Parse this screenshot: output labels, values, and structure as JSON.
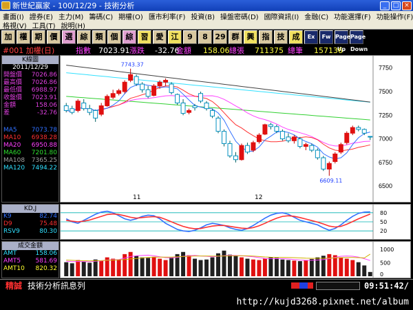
{
  "window": {
    "title": "新世紀贏家 - 100/12/29 - 技術分析"
  },
  "menu": {
    "row1": [
      "畫面(I)",
      "證券(E)",
      "主力(M)",
      "籌碼(C)",
      "期權(O)",
      "匯市利率(F)",
      "投資(B)",
      "操盤密碼(D)",
      "國際資訊(I)",
      "金融(C)",
      "功能選擇(F)",
      "功能操作(F)"
    ],
    "row2": [
      "格視(V)",
      "工具(T)",
      "說明(H)"
    ]
  },
  "toolbar": {
    "buttons": [
      "加",
      "權",
      "期",
      "價",
      "選",
      "綜",
      "類",
      "個",
      "綜",
      "習",
      "愛",
      "江",
      "9",
      "8",
      "29",
      "群",
      "興",
      "指",
      "技",
      "成"
    ],
    "extra": [
      "Ex",
      "Fw",
      "Page Up",
      "Page Down"
    ]
  },
  "info": {
    "symbol": "#001 加權(日)",
    "index_label": "指數",
    "index_value": "7023.91",
    "change_label": "漲跌",
    "change_value": "-32.76",
    "amount_label": "金額",
    "amount_value": "158.06",
    "vol_label": "總張",
    "vol_value": "711375",
    "count_label": "總筆",
    "count_value": "157136"
  },
  "kpanel": {
    "title": "K線圖",
    "date": "2011/12/29",
    "rows": [
      {
        "label": "開盤價",
        "value": "7026.86",
        "color": "#e040e0"
      },
      {
        "label": "最高價",
        "value": "7026.86",
        "color": "#e040e0"
      },
      {
        "label": "最低價",
        "value": "6988.97",
        "color": "#e040e0"
      },
      {
        "label": "收盤價",
        "value": "7023.91",
        "color": "#e040e0"
      },
      {
        "label": "金額",
        "value": "158.06",
        "color": "#e040e0"
      },
      {
        "label": "差",
        "value": "-32.76",
        "color": "#e040e0"
      }
    ],
    "ma": [
      {
        "label": "MA5",
        "value": "7073.78",
        "color": "#3070ff"
      },
      {
        "label": "MA10",
        "value": "6938.28",
        "color": "#ff3030"
      },
      {
        "label": "MA20",
        "value": "6950.88",
        "color": "#ff40ff"
      },
      {
        "label": "MA60",
        "value": "7201.80",
        "color": "#30e030"
      },
      {
        "label": "MA108",
        "value": "7365.25",
        "color": "#a0a0a0"
      },
      {
        "label": "MA120",
        "value": "7494.22",
        "color": "#30e0ff"
      }
    ]
  },
  "kdpanel": {
    "title": "KD,J",
    "rows": [
      {
        "label": "K9",
        "value": "82.74",
        "color": "#3070ff"
      },
      {
        "label": "D9",
        "value": "75.48",
        "color": "#ff3030"
      },
      {
        "label": "RSV9",
        "value": "80.30",
        "color": "#30e0ff"
      }
    ]
  },
  "volpanel": {
    "title": "成交金額",
    "rows": [
      {
        "label": "AMT",
        "value": "158.06",
        "color": "#30e0ff"
      },
      {
        "label": "AMT5",
        "value": "581.69",
        "color": "#ff40ff"
      },
      {
        "label": "AMT10",
        "value": "820.32",
        "color": "#ffff30"
      }
    ]
  },
  "chart_data": {
    "type": "candlestick",
    "price_axis": {
      "ticks": [
        7750,
        7500,
        7250,
        7000,
        6750,
        6500
      ],
      "ylim": [
        6450,
        7850
      ]
    },
    "x_labels": [
      "11",
      "12"
    ],
    "annotations": {
      "high": "7743.37",
      "low": "6609.11"
    },
    "candles": [
      {
        "o": 7350,
        "h": 7380,
        "l": 7280,
        "c": 7300
      },
      {
        "o": 7320,
        "h": 7350,
        "l": 7260,
        "c": 7280
      },
      {
        "o": 7300,
        "h": 7420,
        "l": 7280,
        "c": 7400
      },
      {
        "o": 7380,
        "h": 7420,
        "l": 7300,
        "c": 7320
      },
      {
        "o": 7320,
        "h": 7360,
        "l": 7250,
        "c": 7280
      },
      {
        "o": 7300,
        "h": 7310,
        "l": 7180,
        "c": 7220
      },
      {
        "o": 7260,
        "h": 7380,
        "l": 7240,
        "c": 7350
      },
      {
        "o": 7350,
        "h": 7470,
        "l": 7340,
        "c": 7450
      },
      {
        "o": 7440,
        "h": 7520,
        "l": 7420,
        "c": 7480
      },
      {
        "o": 7480,
        "h": 7530,
        "l": 7460,
        "c": 7510
      },
      {
        "o": 7500,
        "h": 7620,
        "l": 7480,
        "c": 7600
      },
      {
        "o": 7620,
        "h": 7743,
        "l": 7600,
        "c": 7680
      },
      {
        "o": 7660,
        "h": 7680,
        "l": 7560,
        "c": 7580
      },
      {
        "o": 7580,
        "h": 7600,
        "l": 7490,
        "c": 7520
      },
      {
        "o": 7520,
        "h": 7560,
        "l": 7430,
        "c": 7450
      },
      {
        "o": 7460,
        "h": 7580,
        "l": 7450,
        "c": 7560
      },
      {
        "o": 7560,
        "h": 7620,
        "l": 7530,
        "c": 7600
      },
      {
        "o": 7600,
        "h": 7640,
        "l": 7560,
        "c": 7620
      },
      {
        "o": 7580,
        "h": 7600,
        "l": 7470,
        "c": 7490
      },
      {
        "o": 7470,
        "h": 7480,
        "l": 7360,
        "c": 7380
      },
      {
        "o": 7380,
        "h": 7420,
        "l": 7250,
        "c": 7270
      },
      {
        "o": 7280,
        "h": 7320,
        "l": 7260,
        "c": 7300
      },
      {
        "o": 7350,
        "h": 7370,
        "l": 7300,
        "c": 7330
      },
      {
        "o": 7480,
        "h": 7500,
        "l": 7380,
        "c": 7400
      },
      {
        "o": 7380,
        "h": 7400,
        "l": 7300,
        "c": 7320
      },
      {
        "o": 7300,
        "h": 7320,
        "l": 7220,
        "c": 7240
      },
      {
        "o": 7220,
        "h": 7240,
        "l": 7060,
        "c": 7080
      },
      {
        "o": 7080,
        "h": 7100,
        "l": 6920,
        "c": 6950
      },
      {
        "o": 6950,
        "h": 6980,
        "l": 6800,
        "c": 6820
      },
      {
        "o": 6820,
        "h": 6860,
        "l": 6750,
        "c": 6780
      },
      {
        "o": 6780,
        "h": 6950,
        "l": 6770,
        "c": 6930
      },
      {
        "o": 6930,
        "h": 6960,
        "l": 6840,
        "c": 6860
      },
      {
        "o": 6880,
        "h": 6980,
        "l": 6860,
        "c": 6960
      },
      {
        "o": 6970,
        "h": 7060,
        "l": 6950,
        "c": 7040
      },
      {
        "o": 7050,
        "h": 7160,
        "l": 7040,
        "c": 7150
      },
      {
        "o": 7150,
        "h": 7170,
        "l": 7100,
        "c": 7130
      },
      {
        "o": 7130,
        "h": 7150,
        "l": 7060,
        "c": 7080
      },
      {
        "o": 7080,
        "h": 7100,
        "l": 6980,
        "c": 7000
      },
      {
        "o": 7020,
        "h": 7060,
        "l": 6960,
        "c": 6980
      },
      {
        "o": 6980,
        "h": 7040,
        "l": 6950,
        "c": 7020
      },
      {
        "o": 7000,
        "h": 7020,
        "l": 6900,
        "c": 6920
      },
      {
        "o": 6920,
        "h": 6960,
        "l": 6880,
        "c": 6940
      },
      {
        "o": 6930,
        "h": 6950,
        "l": 6860,
        "c": 6880
      },
      {
        "o": 6880,
        "h": 6900,
        "l": 6780,
        "c": 6800
      },
      {
        "o": 6800,
        "h": 6820,
        "l": 6660,
        "c": 6680
      },
      {
        "o": 6680,
        "h": 6760,
        "l": 6609,
        "c": 6740
      },
      {
        "o": 6760,
        "h": 6860,
        "l": 6740,
        "c": 6840
      },
      {
        "o": 6860,
        "h": 6960,
        "l": 6840,
        "c": 6940
      },
      {
        "o": 6960,
        "h": 7080,
        "l": 6940,
        "c": 7060
      },
      {
        "o": 7060,
        "h": 7140,
        "l": 7040,
        "c": 7120
      },
      {
        "o": 7120,
        "h": 7140,
        "l": 7080,
        "c": 7100
      },
      {
        "o": 7100,
        "h": 7110,
        "l": 7040,
        "c": 7060
      },
      {
        "o": 7026,
        "h": 7026,
        "l": 6988,
        "c": 7023
      }
    ],
    "kd_axis": {
      "ticks": [
        80,
        50,
        20
      ],
      "ylim": [
        0,
        100
      ]
    },
    "kd_series": [
      {
        "name": "K9",
        "color": "#3070ff",
        "values": [
          60,
          50,
          45,
          55,
          65,
          75,
          82,
          85,
          80,
          70,
          60,
          55,
          60,
          68,
          72,
          70,
          60,
          45,
          35,
          25,
          20,
          18,
          22,
          30,
          40,
          45,
          42,
          38,
          30,
          25,
          22,
          28,
          38,
          50,
          62,
          72,
          78,
          80,
          75,
          65,
          55,
          50,
          45,
          40,
          30,
          22,
          28,
          40,
          55,
          68,
          78,
          82,
          82.74
        ]
      },
      {
        "name": "D9",
        "color": "#ff3030",
        "values": [
          55,
          52,
          50,
          52,
          56,
          62,
          68,
          74,
          76,
          74,
          70,
          65,
          62,
          64,
          66,
          67,
          65,
          58,
          50,
          42,
          35,
          30,
          27,
          28,
          32,
          36,
          38,
          38,
          35,
          32,
          29,
          28,
          31,
          37,
          45,
          54,
          62,
          68,
          70,
          68,
          64,
          59,
          54,
          49,
          43,
          36,
          33,
          35,
          42,
          51,
          60,
          68,
          75.48
        ]
      }
    ],
    "vol_axis": {
      "ticks": [
        1000,
        500,
        0
      ],
      "ylim": [
        0,
        1200
      ]
    },
    "volume": [
      520,
      480,
      600,
      550,
      500,
      620,
      580,
      700,
      650,
      600,
      820,
      900,
      750,
      700,
      680,
      720,
      650,
      600,
      700,
      820,
      900,
      780,
      650,
      600,
      620,
      700,
      850,
      950,
      800,
      750,
      700,
      650,
      620,
      600,
      650,
      700,
      680,
      620,
      600,
      580,
      560,
      600,
      640,
      700,
      760,
      820,
      780,
      700,
      650,
      600,
      520,
      400,
      158
    ],
    "amt5": [
      560,
      540,
      550,
      545,
      540,
      560,
      570,
      600,
      610,
      620,
      670,
      730,
      760,
      770,
      780,
      760,
      720,
      690,
      680,
      700,
      740,
      760,
      770,
      750,
      740,
      720,
      740,
      760,
      770,
      770,
      760,
      740,
      720,
      690,
      660,
      650,
      650,
      650,
      640,
      620,
      600,
      590,
      590,
      600,
      620,
      650,
      700,
      740,
      750,
      740,
      710,
      650,
      581.69
    ],
    "amt10": [
      600,
      590,
      580,
      575,
      570,
      575,
      580,
      590,
      600,
      610,
      620,
      640,
      660,
      680,
      700,
      710,
      710,
      710,
      710,
      720,
      730,
      740,
      750,
      750,
      750,
      745,
      745,
      750,
      755,
      760,
      760,
      755,
      745,
      730,
      715,
      705,
      700,
      700,
      695,
      690,
      680,
      670,
      665,
      665,
      665,
      670,
      680,
      690,
      695,
      695,
      690,
      680,
      820.32
    ]
  },
  "status": {
    "label": "精誠",
    "message": "技術分析訊息列",
    "time": "09:51:42/"
  },
  "watermark": "http://kujd3268.pixnet.net/album"
}
